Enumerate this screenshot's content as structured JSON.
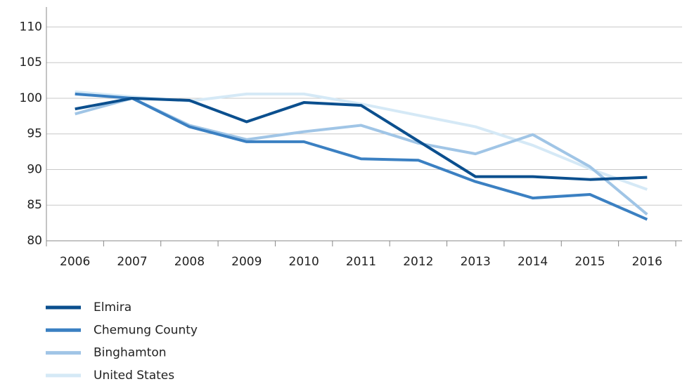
{
  "chart_data": {
    "type": "line",
    "categories": [
      "2006",
      "2007",
      "2008",
      "2009",
      "2010",
      "2011",
      "2012",
      "2013",
      "2014",
      "2015",
      "2016"
    ],
    "series": [
      {
        "name": "Elmira",
        "color": "#0b4f8e",
        "values": [
          98.5,
          100,
          99.7,
          96.7,
          99.4,
          99,
          94,
          89,
          89,
          88.6,
          88.9
        ]
      },
      {
        "name": "Chemung County",
        "color": "#3b80c2",
        "values": [
          100.6,
          100,
          96,
          93.9,
          93.9,
          91.5,
          91.3,
          88.3,
          86,
          86.5,
          83
        ]
      },
      {
        "name": "Binghamton",
        "color": "#a0c5e6",
        "values": [
          97.8,
          100,
          96.2,
          94.2,
          95.3,
          96.2,
          93.7,
          92.2,
          94.9,
          90.4,
          83.7
        ]
      },
      {
        "name": "United States",
        "color": "#d5e9f6",
        "values": [
          100.9,
          100.2,
          99.6,
          100.6,
          100.6,
          99.2,
          97.6,
          96,
          93.4,
          90.1,
          87.2
        ]
      }
    ],
    "ylim": [
      80,
      112.8
    ],
    "yticks": [
      80,
      85,
      90,
      95,
      100,
      105,
      110
    ],
    "grid": true
  }
}
